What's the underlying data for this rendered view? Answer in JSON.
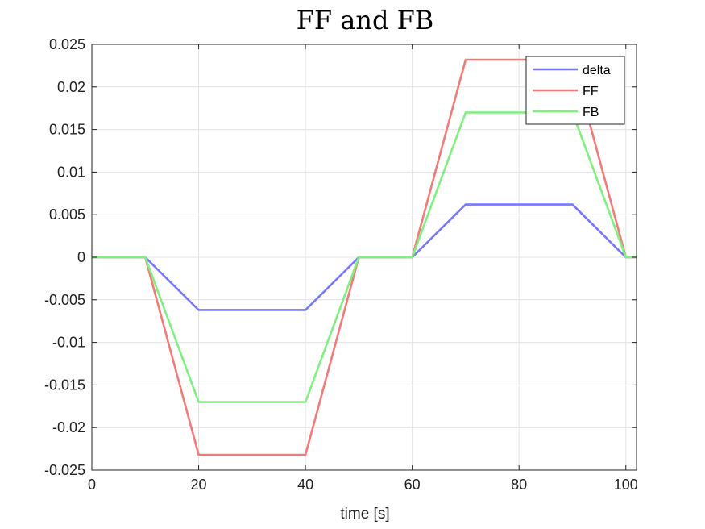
{
  "chart_data": {
    "type": "line",
    "title": "FF and FB",
    "xlabel": "time [s]",
    "ylabel": "",
    "xlim": [
      0,
      102
    ],
    "ylim": [
      -0.025,
      0.025
    ],
    "xticks": [
      0,
      20,
      40,
      60,
      80,
      100
    ],
    "xtick_labels": [
      "0",
      "20",
      "40",
      "60",
      "80",
      "100"
    ],
    "yticks": [
      -0.025,
      -0.02,
      -0.015,
      -0.01,
      -0.005,
      0,
      0.005,
      0.01,
      0.015,
      0.02,
      0.025
    ],
    "ytick_labels": [
      "-0.025",
      "-0.02",
      "-0.015",
      "-0.01",
      "-0.005",
      "0",
      "0.005",
      "0.01",
      "0.015",
      "0.02",
      "0.025"
    ],
    "grid": true,
    "legend_position": "top-right",
    "series": [
      {
        "name": "delta",
        "color": "#7777ff",
        "x": [
          0,
          10,
          20,
          40,
          50,
          60,
          70,
          90,
          100,
          102
        ],
        "y": [
          0,
          0,
          -0.0062,
          -0.0062,
          0,
          0,
          0.0062,
          0.0062,
          0,
          0
        ]
      },
      {
        "name": "FF",
        "color": "#f47a7a",
        "x": [
          0,
          10,
          20,
          40,
          50,
          60,
          70,
          90,
          100,
          102
        ],
        "y": [
          0,
          0,
          -0.0232,
          -0.0232,
          0,
          0,
          0.0232,
          0.0232,
          0,
          0
        ]
      },
      {
        "name": "FB",
        "color": "#80f080",
        "x": [
          0,
          10,
          20,
          40,
          50,
          60,
          70,
          90,
          100,
          102
        ],
        "y": [
          0,
          0,
          -0.017,
          -0.017,
          0,
          0,
          0.017,
          0.017,
          0,
          0
        ]
      }
    ]
  }
}
